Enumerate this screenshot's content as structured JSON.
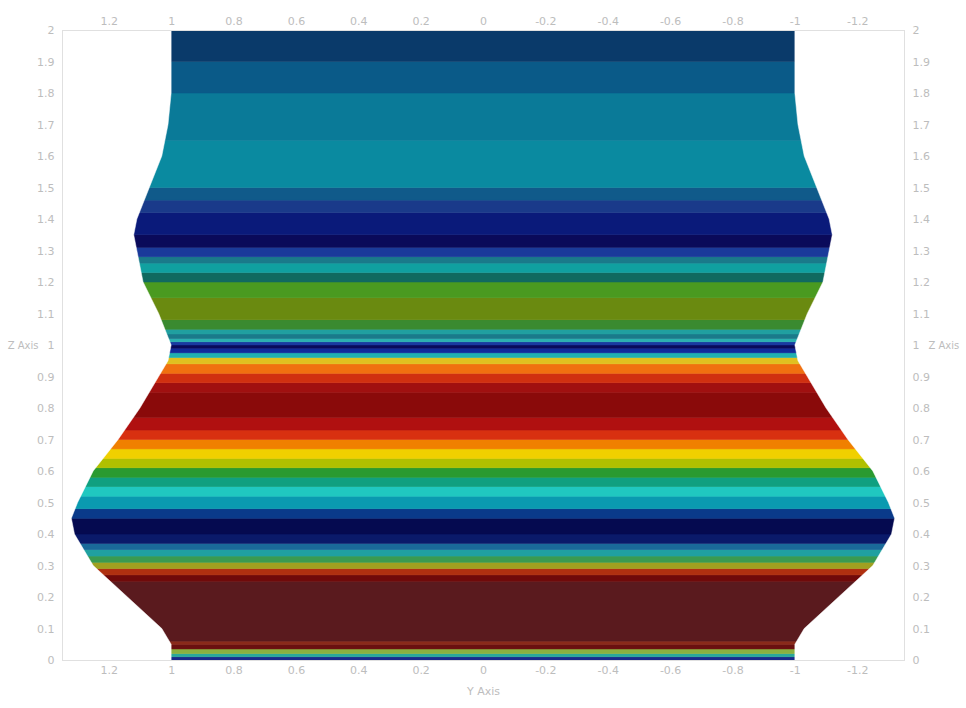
{
  "chart_data": {
    "type": "area",
    "x_label": "Y Axis",
    "y_label": "Z Axis",
    "xlim": [
      1.35,
      -1.35
    ],
    "xticks": [
      1.2,
      1,
      0.8,
      0.6,
      0.4,
      0.2,
      0,
      -0.2,
      -0.4,
      -0.6,
      -0.8,
      -1,
      -1.2
    ],
    "ylim": [
      0,
      2
    ],
    "yticks": [
      0,
      0.1,
      0.2,
      0.3,
      0.4,
      0.5,
      0.6,
      0.7,
      0.8,
      0.9,
      1,
      1.1,
      1.2,
      1.3,
      1.4,
      1.5,
      1.6,
      1.7,
      1.8,
      1.9,
      2
    ],
    "profile": {
      "z": [
        0,
        0.05,
        0.1,
        0.2,
        0.3,
        0.4,
        0.45,
        0.5,
        0.6,
        0.7,
        0.8,
        0.9,
        0.95,
        1.0,
        1.05,
        1.1,
        1.2,
        1.3,
        1.35,
        1.4,
        1.5,
        1.6,
        1.7,
        1.8,
        1.9,
        2.0
      ],
      "radius": [
        1.0,
        1.0,
        1.03,
        1.14,
        1.25,
        1.31,
        1.32,
        1.3,
        1.25,
        1.17,
        1.1,
        1.04,
        1.01,
        1.0,
        1.02,
        1.04,
        1.09,
        1.11,
        1.12,
        1.11,
        1.07,
        1.03,
        1.01,
        1.0,
        1.0,
        1.0
      ]
    },
    "bands": {
      "z": [
        0,
        0.01,
        0.02,
        0.035,
        0.05,
        0.06,
        0.25,
        0.27,
        0.29,
        0.31,
        0.33,
        0.35,
        0.37,
        0.4,
        0.45,
        0.48,
        0.52,
        0.55,
        0.58,
        0.61,
        0.64,
        0.67,
        0.7,
        0.73,
        0.77,
        0.85,
        0.88,
        0.91,
        0.94,
        0.96,
        0.975,
        0.99,
        1.0,
        1.01,
        1.02,
        1.035,
        1.05,
        1.08,
        1.15,
        1.2,
        1.23,
        1.26,
        1.28,
        1.31,
        1.35,
        1.42,
        1.46,
        1.5,
        1.65,
        1.8,
        1.9,
        2.0
      ],
      "colors": [
        "#1a2a8a",
        "#2aa89a",
        "#8ab040",
        "#6a1010",
        "#8a2a1a",
        "#5a1a1e",
        "#700a0a",
        "#b03010",
        "#a0a020",
        "#3a9a50",
        "#20a0a0",
        "#1a6a9a",
        "#0a1a6a",
        "#050a50",
        "#0a3a8a",
        "#0a9ab0",
        "#20c8c0",
        "#10a080",
        "#2a9a30",
        "#b0c000",
        "#f0d000",
        "#f08000",
        "#d83010",
        "#b01010",
        "#8a0a0a",
        "#a01010",
        "#d03010",
        "#f07010",
        "#e0c020",
        "#20b0b0",
        "#102a9a",
        "#0a0a5a",
        "#1a3aa0",
        "#2ab0b0",
        "#1a7a8a",
        "#20a0a0",
        "#3a8a30",
        "#6a8a10",
        "#4a9a20",
        "#106a60",
        "#10a0a0",
        "#1a7a8a",
        "#1a3a9a",
        "#0a0a5a",
        "#0a1a7a",
        "#1a3a8a",
        "#105a8a",
        "#0a8aa0",
        "#0a7a98",
        "#0a5a88",
        "#0a3a6a"
      ]
    }
  }
}
